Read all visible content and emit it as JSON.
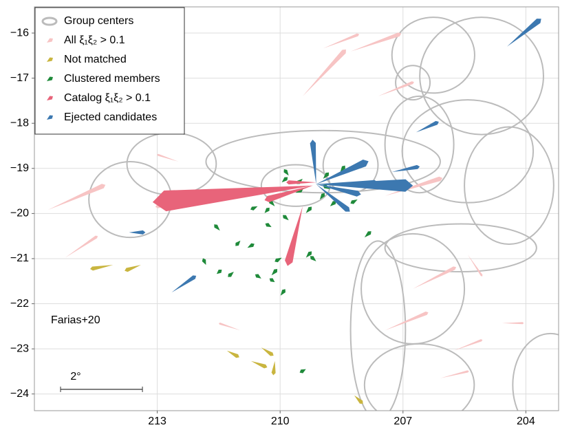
{
  "chart_data": {
    "type": "quiver",
    "annotation": "Farias+20",
    "scale_bar": {
      "label": "2°",
      "length": 2
    },
    "xlim": [
      216.0,
      203.2
    ],
    "ylim": [
      -24.37,
      -15.42
    ],
    "xticks": [
      213,
      210,
      207,
      204
    ],
    "yticks": [
      {
        "value": -16,
        "label": "−16"
      },
      {
        "value": -17,
        "label": "−17"
      },
      {
        "value": -18,
        "label": "−18"
      },
      {
        "value": -19,
        "label": "−19"
      },
      {
        "value": -20,
        "label": "−20"
      },
      {
        "value": -21,
        "label": "−21"
      },
      {
        "value": -22,
        "label": "−22"
      },
      {
        "value": -23,
        "label": "−23"
      },
      {
        "value": -24,
        "label": "−24"
      }
    ],
    "grid": true,
    "legend": "upper left",
    "groups": {
      "name": "Group centers",
      "color": "#bbbbbb",
      "x": [
        212.65,
        213.66,
        208.95,
        206.26,
        205.08,
        205.42,
        206.6,
        204.41,
        206.76,
        207.61,
        206.6,
        203.4,
        208.28,
        209.62,
        206.76,
        205.59
      ],
      "y": [
        -18.9,
        -19.69,
        -18.85,
        -16.49,
        -16.95,
        -18.62,
        -18.47,
        -19.38,
        -21.67,
        -22.59,
        -23.8,
        -23.8,
        -18.93,
        -19.38,
        -17.1,
        -20.76
      ],
      "rx": [
        1.09,
        1.01,
        2.86,
        1.01,
        1.51,
        1.6,
        0.84,
        1.09,
        1.26,
        0.67,
        1.34,
        0.92,
        0.67,
        0.84,
        0.42,
        1.85
      ],
      "ry": [
        0.69,
        0.84,
        0.69,
        0.84,
        1.3,
        1.14,
        1.07,
        1.3,
        1.22,
        1.98,
        0.91,
        1.14,
        0.61,
        0.46,
        0.38,
        0.53
      ]
    },
    "series": [
      {
        "name": "All ξ₁ξ₂ > 0.1",
        "color": "#f7c4c4",
        "x": [
          215.67,
          215.25,
          209.45,
          208.28,
          208.95,
          207.44,
          206.76,
          207.44,
          205.76,
          206.09,
          205.42,
          211.81,
          212.48,
          204.58,
          210.97,
          207.61
        ],
        "y": [
          -19.92,
          -20.98,
          -17.4,
          -16.41,
          -16.34,
          -19.61,
          -21.67,
          -22.59,
          -23.04,
          -23.65,
          -20.91,
          -19.54,
          -18.85,
          -22.43,
          -22.59,
          -17.4
        ],
        "dx": [
          -1.34,
          -0.76,
          -1.01,
          -1.18,
          -0.84,
          -1.34,
          -1.01,
          -1.01,
          -0.67,
          -0.67,
          -0.34,
          1.18,
          0.5,
          -0.5,
          0.5,
          -0.84
        ],
        "dy": [
          0.53,
          0.46,
          0.99,
          0.38,
          0.3,
          0.38,
          0.46,
          0.38,
          0.23,
          0.15,
          -0.46,
          -0.3,
          0.15,
          0,
          0.15,
          0.3
        ]
      },
      {
        "name": "Not matched",
        "color": "#c9b53f",
        "x": [
          214.08,
          213.4,
          211.3,
          210.46,
          210.71,
          210.13,
          208.19
        ],
        "y": [
          -21.14,
          -21.14,
          -23.04,
          -22.97,
          -23.27,
          -23.27,
          -24.03
        ],
        "dx": [
          0.5,
          0.34,
          -0.25,
          -0.25,
          -0.34,
          0.03,
          -0.17
        ],
        "dy": [
          -0.08,
          -0.11,
          -0.12,
          -0.15,
          -0.12,
          -0.26,
          -0.15
        ]
      },
      {
        "name": "Clustered members",
        "color": "#1f8a3a",
        "x": [
          209.96,
          209.79,
          209.62,
          209.45,
          208.95,
          208.78,
          208.53,
          208.28,
          210.13,
          210.38,
          210.55,
          209.79,
          209.37,
          210.97,
          210.8,
          211.47,
          211.81,
          211.55,
          211.13,
          210.21,
          210.13,
          209.96,
          209.37,
          209.12,
          207.94,
          209.37,
          209.99,
          210.46,
          208.78,
          208.11,
          209.03,
          210.21
        ],
        "y": [
          -19.31,
          -19.16,
          -19.54,
          -19.23,
          -19.23,
          -19.46,
          -19.08,
          -19.31,
          -19.84,
          -19.99,
          -19.84,
          -20.15,
          -19.99,
          -20.6,
          -20.76,
          -20.38,
          -21.14,
          -21.34,
          -21.29,
          -21.37,
          -21.52,
          -20.98,
          -20.98,
          -21.06,
          -20.53,
          -23.45,
          -21.82,
          -21.44,
          -19.84,
          -19.69,
          -19.69,
          -20.3
        ],
        "dx": [
          -0.1,
          0.08,
          -0.12,
          0.1,
          -0.1,
          0.12,
          -0.08,
          -0.1,
          0.1,
          -0.08,
          0.12,
          0.1,
          -0.1,
          0.08,
          -0.12,
          0.1,
          0.05,
          -0.08,
          0.1,
          -0.1,
          0.08,
          0.12,
          -0.1,
          0.1,
          -0.12,
          0.1,
          -0.08,
          0.1,
          -0.1,
          0.12,
          -0.08,
          0.1
        ],
        "dy": [
          0.08,
          0.1,
          0.05,
          -0.08,
          0.1,
          0.06,
          0.1,
          -0.06,
          0.1,
          0.08,
          -0.05,
          0.08,
          0.1,
          -0.08,
          0.06,
          0.1,
          0.1,
          0.06,
          -0.08,
          0.1,
          0.05,
          -0.06,
          0.1,
          0.08,
          0.1,
          -0.05,
          0.1,
          0.06,
          0.08,
          -0.06,
          0.1,
          0.05
        ]
      },
      {
        "name": "Catalog ξ₁ξ₂ > 0.1",
        "color": "#e8647a",
        "x": [
          211.3,
          209.2,
          209.45,
          209.2,
          209.12
        ],
        "y": [
          -19.69,
          -19.38,
          -19.84,
          -19.38,
          -19.31
        ],
        "dx": [
          1.51,
          3.61,
          0.34,
          1.09,
          0.67
        ],
        "dy": [
          -0.03,
          -0.34,
          -1.22,
          -0.3,
          0
        ]
      },
      {
        "name": "Ejected candidates",
        "color": "#3c78b0",
        "x": [
          204.46,
          206.68,
          212.65,
          213.69,
          209.12,
          209.12,
          209.12,
          209.12,
          209.12,
          207.27,
          209.12
        ],
        "y": [
          -16.3,
          -18.2,
          -21.75,
          -20.42,
          -19.35,
          -19.35,
          -19.35,
          -19.35,
          -19.35,
          -19.08,
          -19.35
        ],
        "dx": [
          -0.77,
          -0.5,
          -0.55,
          -0.34,
          -1.18,
          -2.18,
          -1.01,
          0.08,
          -0.76,
          -0.62,
          -1.43
        ],
        "dy": [
          0.57,
          0.21,
          0.34,
          0,
          0.47,
          -0.03,
          -0.21,
          0.91,
          -0.56,
          0.11,
          0
        ]
      }
    ]
  }
}
